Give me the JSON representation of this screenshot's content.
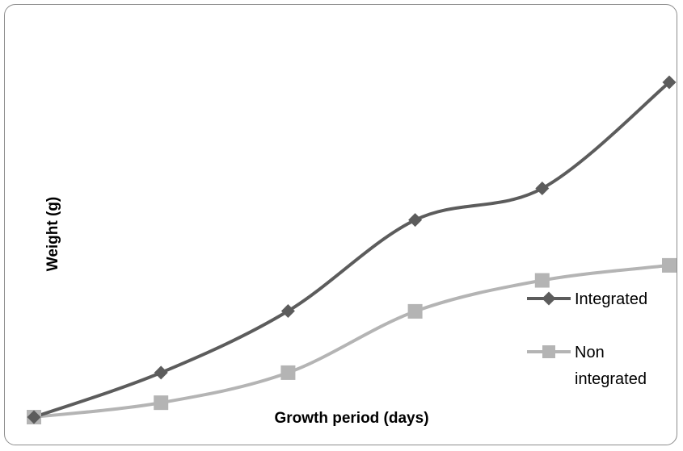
{
  "chart_data": {
    "type": "line",
    "title": "",
    "xlabel": "Growth period (days)",
    "ylabel": "Weight (g)",
    "x": [
      1,
      2,
      3,
      4,
      5,
      6
    ],
    "ylim": [
      0,
      100
    ],
    "grid": false,
    "axis_ticks_shown": false,
    "legend_position": "right",
    "series": [
      {
        "name": "Integrated",
        "values": [
          0,
          14.5,
          34.6,
          64.3,
          74.6,
          109.2
        ],
        "color": "#5c5c5c",
        "marker": "diamond"
      },
      {
        "name": "Non integrated",
        "values": [
          0,
          4.7,
          14.5,
          34.5,
          44.6,
          49.5
        ],
        "color": "#b4b4b4",
        "marker": "square"
      }
    ]
  },
  "legend": {
    "items": [
      {
        "line1": "Integrated",
        "line2": ""
      },
      {
        "line1": "Non",
        "line2": "integrated"
      }
    ]
  }
}
